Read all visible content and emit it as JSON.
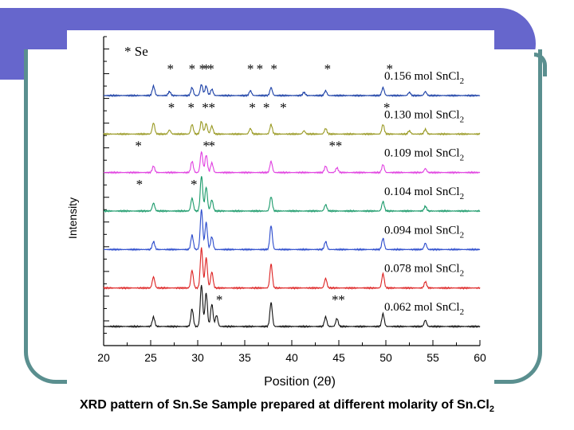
{
  "slide": {
    "caption_main": "XRD pattern of Sn.Se Sample prepared at different molarity of Sn.Cl",
    "caption_sub": "2"
  },
  "colors": {
    "deco_bar": "#6666cc",
    "deco_frame": "#5a8f8f",
    "background": "#ffffff"
  },
  "chart_data": {
    "type": "line",
    "title": "",
    "xlabel": "Position (2θ)",
    "ylabel": "Intensity",
    "xlim": [
      20,
      60
    ],
    "xticks": [
      20,
      25,
      30,
      35,
      40,
      45,
      50,
      55,
      60
    ],
    "yticks_count": 25,
    "grid": false,
    "legend_marker_label": "* Se",
    "series": [
      {
        "name": "0.156 mol SnCl2",
        "label_main": "0.156 mol SnCl",
        "label_sub": "2",
        "color": "#1a3fa6",
        "peaks": [
          [
            25.3,
            12
          ],
          [
            27.0,
            5
          ],
          [
            29.4,
            10
          ],
          [
            30.4,
            14
          ],
          [
            30.9,
            12
          ],
          [
            31.5,
            8
          ],
          [
            35.6,
            6
          ],
          [
            37.8,
            10
          ],
          [
            41.3,
            4
          ],
          [
            43.6,
            6
          ],
          [
            49.7,
            10
          ],
          [
            52.5,
            4
          ],
          [
            54.2,
            5
          ]
        ],
        "stars_x": [
          27.1,
          29.4,
          30.5,
          30.9,
          31.4,
          35.6,
          36.6,
          38.1,
          43.8,
          50.4
        ]
      },
      {
        "name": "0.130 mol SnCl2",
        "label_main": "0.130 mol SnCl",
        "label_sub": "2",
        "color": "#999922",
        "peaks": [
          [
            25.3,
            14
          ],
          [
            27.0,
            5
          ],
          [
            29.4,
            12
          ],
          [
            30.4,
            16
          ],
          [
            30.9,
            13
          ],
          [
            31.5,
            10
          ],
          [
            35.6,
            7
          ],
          [
            37.8,
            12
          ],
          [
            41.3,
            4
          ],
          [
            43.6,
            7
          ],
          [
            49.7,
            12
          ],
          [
            52.5,
            4
          ],
          [
            54.2,
            6
          ]
        ],
        "stars_x": [
          27.2,
          29.3,
          30.8,
          31.5,
          35.8,
          37.3,
          39.1,
          50.1
        ]
      },
      {
        "name": "0.109 mol SnCl2",
        "label_main": "0.109 mol SnCl",
        "label_sub": "2",
        "color": "#e040e0",
        "peaks": [
          [
            25.3,
            8
          ],
          [
            29.4,
            14
          ],
          [
            30.4,
            26
          ],
          [
            30.9,
            22
          ],
          [
            31.5,
            12
          ],
          [
            37.8,
            14
          ],
          [
            43.6,
            8
          ],
          [
            44.8,
            6
          ],
          [
            49.7,
            10
          ],
          [
            54.2,
            5
          ]
        ],
        "stars_x": [
          23.7,
          30.9,
          31.5,
          44.3,
          45.0
        ]
      },
      {
        "name": "0.104 mol SnCl2",
        "label_main": "0.104 mol SnCl",
        "label_sub": "2",
        "color": "#1a9a6a",
        "peaks": [
          [
            25.3,
            10
          ],
          [
            29.4,
            16
          ],
          [
            30.4,
            44
          ],
          [
            30.9,
            30
          ],
          [
            31.5,
            14
          ],
          [
            37.8,
            18
          ],
          [
            43.6,
            8
          ],
          [
            49.7,
            12
          ],
          [
            54.2,
            6
          ]
        ],
        "stars_x": [
          23.8,
          29.6
        ]
      },
      {
        "name": "0.094 mol SnCl2",
        "label_main": "0.094 mol SnCl",
        "label_sub": "2",
        "color": "#2a4acc",
        "peaks": [
          [
            25.3,
            10
          ],
          [
            29.4,
            18
          ],
          [
            30.4,
            50
          ],
          [
            30.9,
            34
          ],
          [
            31.5,
            16
          ],
          [
            37.8,
            30
          ],
          [
            43.6,
            10
          ],
          [
            49.7,
            14
          ],
          [
            54.2,
            8
          ]
        ],
        "stars_x": []
      },
      {
        "name": "0.078 mol SnCl2",
        "label_main": "0.078 mol SnCl",
        "label_sub": "2",
        "color": "#dd2222",
        "peaks": [
          [
            25.3,
            14
          ],
          [
            29.4,
            22
          ],
          [
            30.4,
            50
          ],
          [
            30.9,
            38
          ],
          [
            31.5,
            20
          ],
          [
            37.8,
            30
          ],
          [
            43.6,
            12
          ],
          [
            49.7,
            18
          ],
          [
            54.2,
            8
          ]
        ],
        "stars_x": []
      },
      {
        "name": "0.062 mol SnCl2",
        "label_main": "0.062 mol SnCl",
        "label_sub": "2",
        "color": "#111111",
        "peaks": [
          [
            25.3,
            12
          ],
          [
            29.4,
            22
          ],
          [
            30.4,
            52
          ],
          [
            30.9,
            42
          ],
          [
            31.5,
            28
          ],
          [
            32.0,
            14
          ],
          [
            37.8,
            30
          ],
          [
            43.6,
            12
          ],
          [
            44.8,
            10
          ],
          [
            49.7,
            16
          ],
          [
            54.2,
            8
          ]
        ],
        "stars_x": [
          32.3,
          44.6,
          45.3
        ]
      }
    ]
  }
}
